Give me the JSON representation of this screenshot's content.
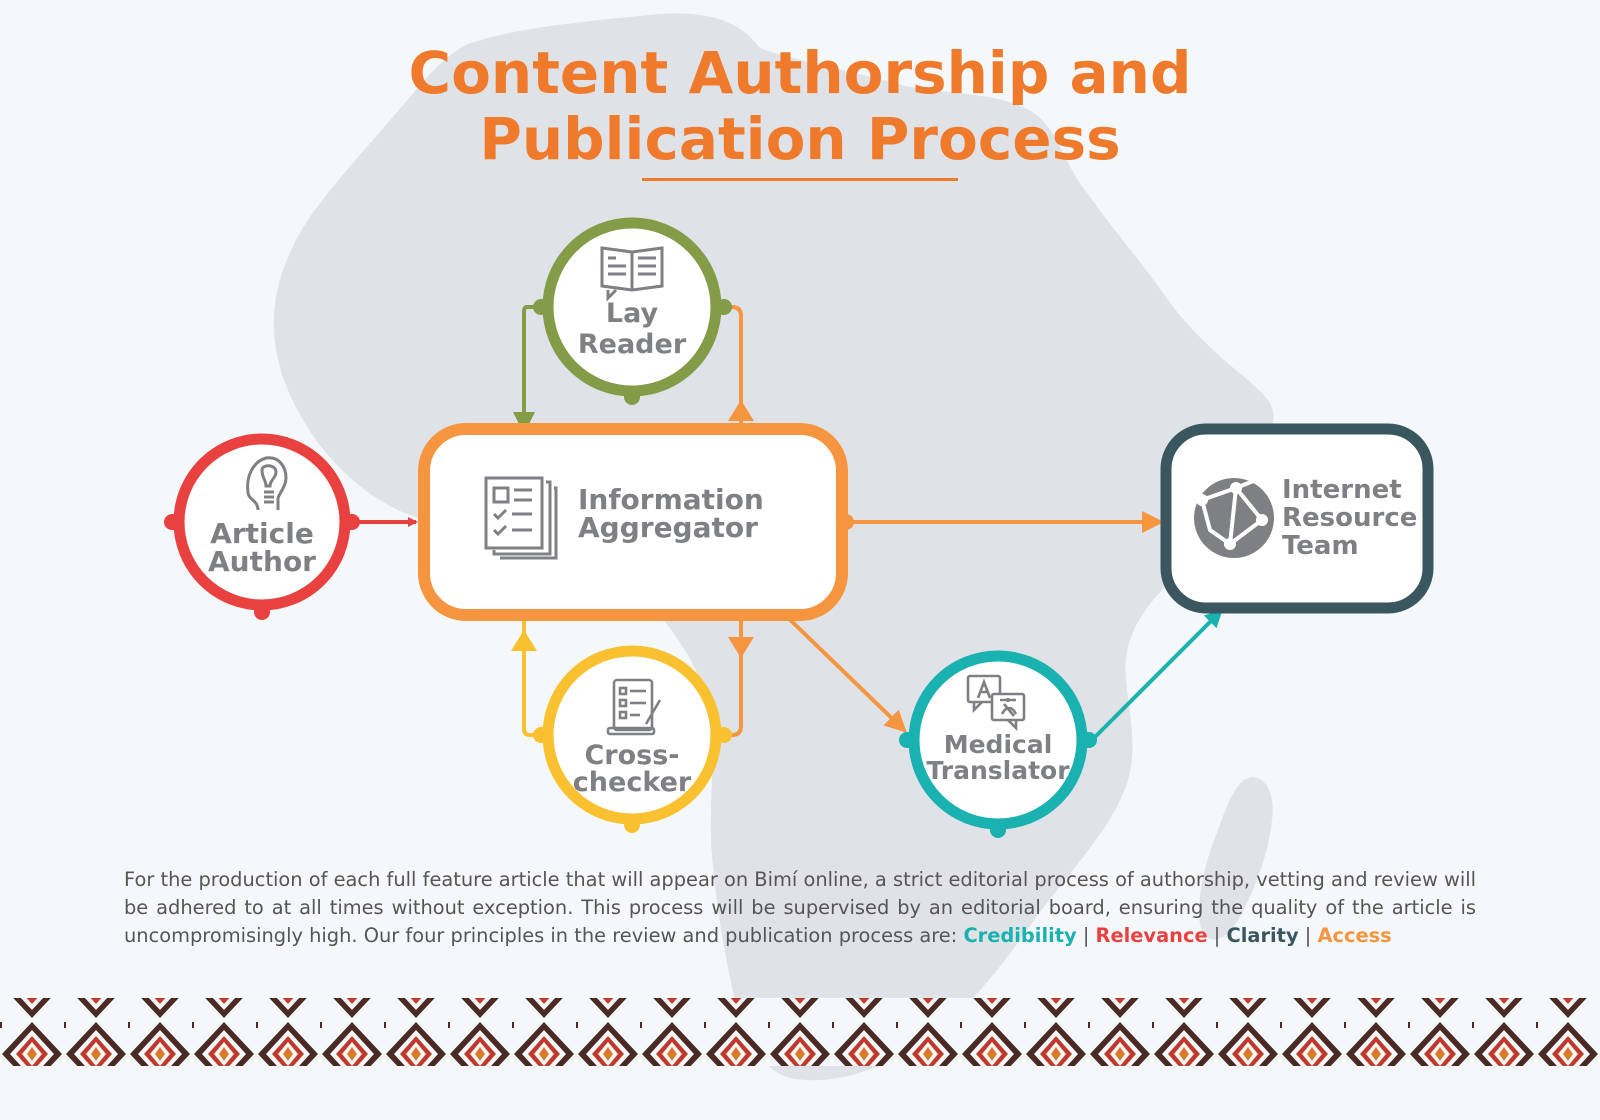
{
  "title": {
    "line1": "Content Authorship and",
    "line2": "Publication Process"
  },
  "nodes": {
    "article_author": {
      "line1": "Article",
      "line2": "Author",
      "icon": "lightbulb-head-icon",
      "color": "#e8413f"
    },
    "information_aggregator": {
      "line1": "Information",
      "line2": "Aggregator",
      "icon": "document-stack-icon",
      "color": "#f6953f"
    },
    "lay_reader": {
      "line1": "Lay",
      "line2": "Reader",
      "icon": "open-book-icon",
      "color": "#849b48"
    },
    "cross_checker": {
      "line1": "Cross-",
      "line2": "checker",
      "icon": "checklist-pen-icon",
      "color": "#f9c12f"
    },
    "medical_translator": {
      "line1": "Medical",
      "line2": "Translator",
      "icon": "translate-bubbles-icon",
      "color": "#19b2b0"
    },
    "internet_resource_team": {
      "line1": "Internet",
      "line2": "Resource",
      "line3": "Team",
      "icon": "globe-network-icon",
      "color": "#3a5760"
    }
  },
  "description": {
    "text": "For the production of each full feature article that will appear on Bimí online, a strict editorial process of authorship, vetting and review will be adhered to at all times without exception. This process will be supervised by an editorial board, ensuring the quality of the article is uncompromisingly high. Our four principles in the review and publication process are:",
    "separator": "|",
    "principles": [
      {
        "label": "Credibility",
        "color": "#19b2b0"
      },
      {
        "label": "Relevance",
        "color": "#e8413f"
      },
      {
        "label": "Clarity",
        "color": "#3a5760"
      },
      {
        "label": "Access",
        "color": "#f6953f"
      }
    ]
  },
  "colors": {
    "title": "#f07a2c",
    "text": "#555557",
    "label": "#7e8083",
    "map": "#dfe2e6",
    "band_dark": "#4b2a26",
    "band_red": "#c0392b",
    "band_orange": "#d87b2a"
  }
}
